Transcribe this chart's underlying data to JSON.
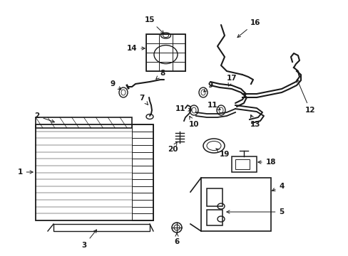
{
  "bg_color": "#ffffff",
  "line_color": "#1a1a1a",
  "text_color": "#1a1a1a",
  "figsize": [
    4.89,
    3.6
  ],
  "dpi": 100
}
